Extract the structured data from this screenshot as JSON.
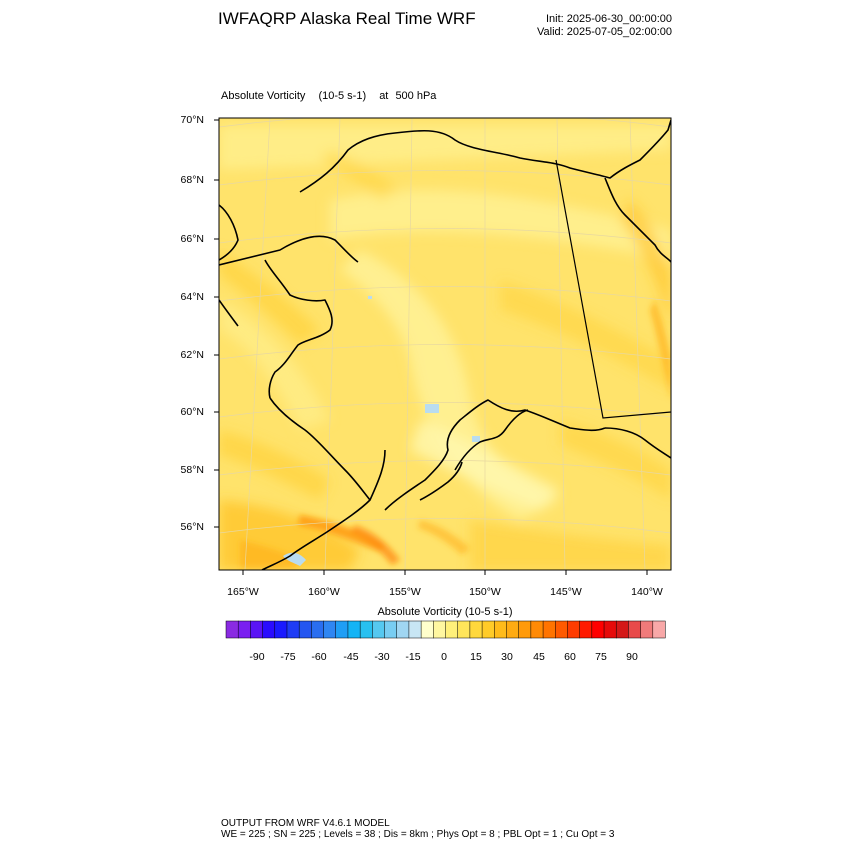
{
  "header": {
    "title": "IWFAQRP Alaska Real Time WRF",
    "init": "Init: 2025-06-30_00:00:00",
    "valid": "Valid: 2025-07-05_02:00:00"
  },
  "map": {
    "field_name": "Absolute Vorticity",
    "field_units": "(10-5 s-1)",
    "level_prefix": "at",
    "level": "500 hPa",
    "lat_labels": [
      "70°N",
      "68°N",
      "66°N",
      "64°N",
      "62°N",
      "60°N",
      "58°N",
      "56°N"
    ],
    "lon_labels": [
      "165°W",
      "160°W",
      "155°W",
      "150°W",
      "145°W",
      "140°W"
    ],
    "colors": {
      "base": "#ffe36b",
      "light": "#fff39a",
      "medium": "#ffd23a",
      "orange": "#ffb21a",
      "deep": "#ff8a0a",
      "ice": "#b9dcf0",
      "coast": "#000000"
    }
  },
  "colorbar": {
    "title": "Absolute Vorticity  (10-5 s-1)",
    "colors": [
      "#8a2be2",
      "#7a1ff0",
      "#5a14f5",
      "#2a0cff",
      "#1a1aff",
      "#1f3cf5",
      "#2456f0",
      "#2a6ef0",
      "#2f86f2",
      "#1f9ef5",
      "#14b4f5",
      "#28c0f0",
      "#55c8f0",
      "#78cdf2",
      "#a0d6f2",
      "#c8e6f4",
      "#ffffcc",
      "#fff7a0",
      "#fff07a",
      "#ffe55a",
      "#ffd83c",
      "#ffcb28",
      "#ffbb1a",
      "#ffab12",
      "#ff9a0a",
      "#ff8a05",
      "#ff7400",
      "#ff5a00",
      "#ff3c00",
      "#ff1a00",
      "#ff0000",
      "#e60a0a",
      "#d41818",
      "#e84a4a",
      "#f07a7a",
      "#f8a8a8"
    ],
    "labels": [
      "-90",
      "-75",
      "-60",
      "-45",
      "-30",
      "-15",
      "0",
      "15",
      "30",
      "45",
      "60",
      "75",
      "90"
    ]
  },
  "footer": {
    "line1": "OUTPUT FROM WRF V4.6.1 MODEL",
    "line2": "WE = 225 ; SN = 225 ; Levels = 38 ; Dis = 8km ; Phys Opt = 8 ; PBL Opt = 1 ; Cu Opt = 3"
  }
}
